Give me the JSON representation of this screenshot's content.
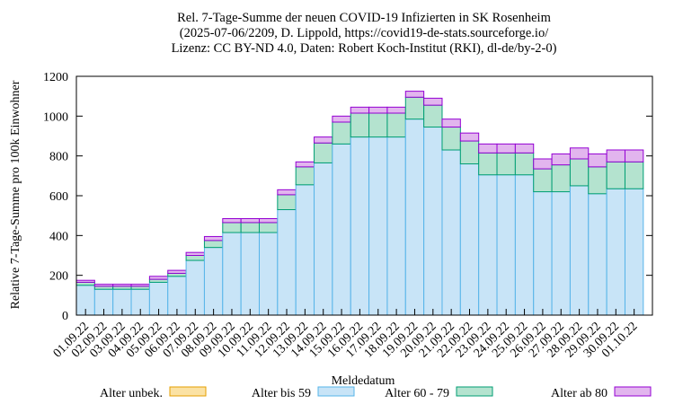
{
  "chart_data": {
    "type": "bar",
    "stacked": true,
    "title_lines": [
      "Rel. 7-Tage-Summe der neuen COVID-19 Infizierten in SK Rosenheim",
      "(2025-07-06/2209, D. Lippold, https://covid19-de-stats.sourceforge.io/",
      "Lizenz: CC BY-ND 4.0, Daten: Robert Koch-Institut (RKI), dl-de/by-2-0)"
    ],
    "xlabel": "Meldedatum",
    "ylabel": "Relative 7-Tage-Summe pro 100k Einwohner",
    "ylim": [
      0,
      1200
    ],
    "yticks": [
      0,
      200,
      400,
      600,
      800,
      1000,
      1200
    ],
    "grid": false,
    "legend_position": "bottom",
    "categories": [
      "01.09.22",
      "02.09.22",
      "03.09.22",
      "04.09.22",
      "05.09.22",
      "06.09.22",
      "07.09.22",
      "08.09.22",
      "09.09.22",
      "10.09.22",
      "11.09.22",
      "12.09.22",
      "13.09.22",
      "14.09.22",
      "15.09.22",
      "16.09.22",
      "17.09.22",
      "18.09.22",
      "19.09.22",
      "20.09.22",
      "21.09.22",
      "22.09.22",
      "23.09.22",
      "24.09.22",
      "25.09.22",
      "26.09.22",
      "27.09.22",
      "28.09.22",
      "29.09.22",
      "30.09.22",
      "01.10.22"
    ],
    "series": [
      {
        "name": "Alter unbek.",
        "fill": "#fbe2a4",
        "stroke": "#e69f00",
        "values": [
          0,
          0,
          0,
          0,
          0,
          0,
          0,
          0,
          0,
          0,
          0,
          0,
          0,
          0,
          0,
          0,
          0,
          0,
          0,
          0,
          0,
          0,
          0,
          0,
          0,
          0,
          0,
          0,
          0,
          0,
          0
        ]
      },
      {
        "name": "Alter bis 59",
        "fill": "#c8e4f7",
        "stroke": "#56b4e9",
        "values": [
          150,
          130,
          130,
          130,
          165,
          195,
          275,
          340,
          415,
          415,
          415,
          530,
          655,
          765,
          860,
          895,
          895,
          895,
          985,
          945,
          830,
          760,
          705,
          705,
          705,
          620,
          620,
          650,
          610,
          635,
          635
        ]
      },
      {
        "name": "Alter 60 - 79",
        "fill": "#b4e3cf",
        "stroke": "#009e73",
        "values": [
          15,
          15,
          15,
          15,
          15,
          15,
          25,
          35,
          50,
          50,
          50,
          75,
          90,
          100,
          110,
          120,
          120,
          120,
          110,
          110,
          115,
          115,
          110,
          110,
          110,
          115,
          135,
          135,
          135,
          135,
          135
        ]
      },
      {
        "name": "Alter ab 80",
        "fill": "#e2b5ee",
        "stroke": "#9400d3",
        "values": [
          10,
          10,
          10,
          10,
          15,
          15,
          15,
          20,
          20,
          20,
          20,
          25,
          25,
          30,
          30,
          30,
          30,
          30,
          30,
          35,
          40,
          40,
          45,
          45,
          45,
          50,
          55,
          55,
          65,
          60,
          60
        ]
      }
    ]
  }
}
